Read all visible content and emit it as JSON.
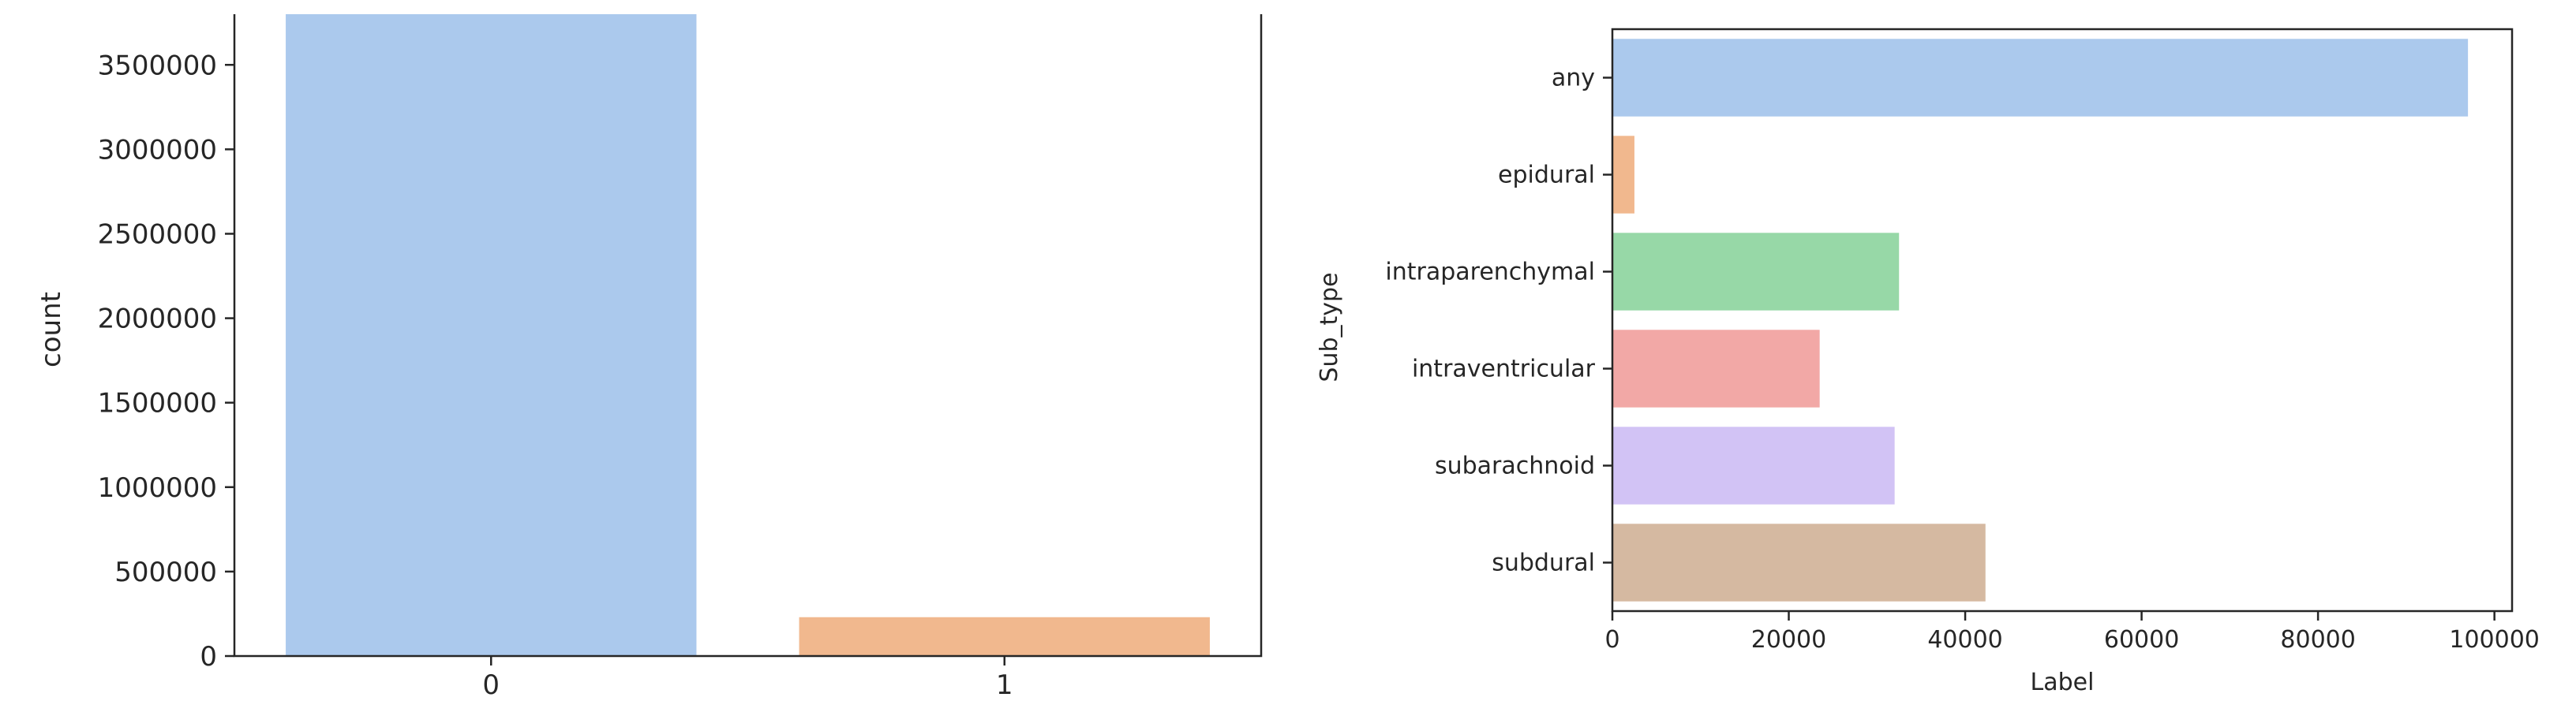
{
  "chart_data": [
    {
      "type": "bar",
      "orientation": "vertical",
      "categories": [
        "0",
        "1"
      ],
      "values": [
        3800000,
        230000
      ],
      "colors": [
        "#abc9ed",
        "#f1b88e"
      ],
      "xlabel": "",
      "ylabel": "count",
      "ylim": [
        0,
        3800000
      ],
      "yticks": [
        0,
        500000,
        1000000,
        1500000,
        2000000,
        2500000,
        3000000,
        3500000
      ],
      "ytick_labels": [
        "0",
        "500000",
        "1000000",
        "1500000",
        "2000000",
        "2500000",
        "3000000",
        "3500000"
      ],
      "grid": false
    },
    {
      "type": "bar",
      "orientation": "horizontal",
      "categories": [
        "any",
        "epidural",
        "intraparenchymal",
        "intraventricular",
        "subarachnoid",
        "subdural"
      ],
      "values": [
        97000,
        2500,
        32500,
        23500,
        32000,
        42300
      ],
      "colors": [
        "#abc9ed",
        "#f1b88e",
        "#97d8a7",
        "#f2a8a6",
        "#d2c3f5",
        "#d5b9a1"
      ],
      "xlabel": "Label",
      "ylabel": "Sub_type",
      "xlim": [
        0,
        102000
      ],
      "xticks": [
        0,
        20000,
        40000,
        60000,
        80000,
        100000
      ],
      "xtick_labels": [
        "0",
        "20000",
        "40000",
        "60000",
        "80000",
        "100000"
      ],
      "grid": false
    }
  ]
}
